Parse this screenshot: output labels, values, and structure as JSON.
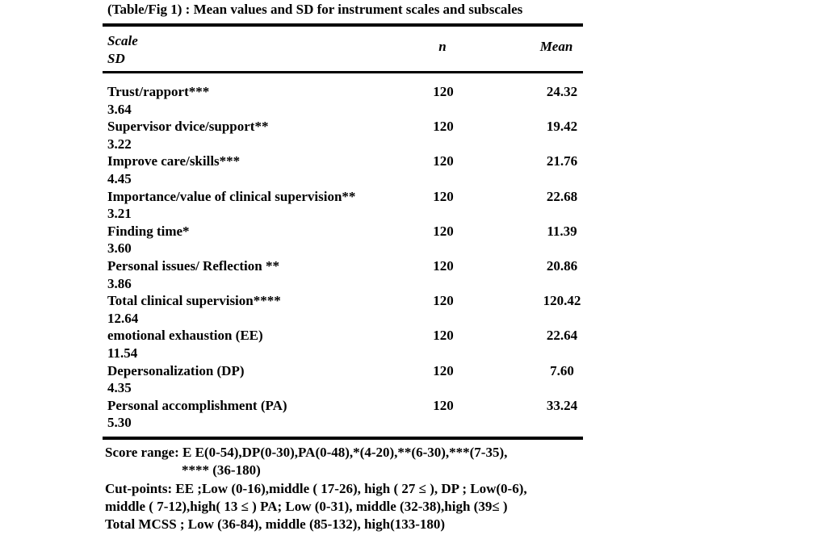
{
  "title": "(Table/Fig 1) : Mean values and SD for instrument scales and subscales",
  "table": {
    "header": {
      "scale": "Scale",
      "sd": "SD",
      "n": "n",
      "mean": "Mean"
    },
    "rows": [
      {
        "scale": "Trust/rapport***",
        "n": "120",
        "mean": "24.32",
        "sd": "3.64"
      },
      {
        "scale": "Supervisor dvice/support**",
        "n": "120",
        "mean": "19.42",
        "sd": "3.22"
      },
      {
        "scale": "Improve care/skills***",
        "n": "120",
        "mean": "21.76",
        "sd": "4.45"
      },
      {
        "scale": "Importance/value of clinical supervision**",
        "n": "120",
        "mean": "22.68",
        "sd": "3.21"
      },
      {
        "scale": "Finding time*",
        "n": "120",
        "mean": "11.39",
        "sd": "3.60"
      },
      {
        "scale": "Personal issues/ Reflection **",
        "n": "120",
        "mean": "20.86",
        "sd": "3.86"
      },
      {
        "scale": "Total clinical supervision****",
        "n": "120",
        "mean": "120.42",
        "sd": "12.64"
      },
      {
        "scale": "emotional exhaustion (EE)",
        "n": "120",
        "mean": "22.64",
        "sd": "11.54"
      },
      {
        "scale": "Depersonalization (DP)",
        "n": "120",
        "mean": "7.60",
        "sd": "4.35"
      },
      {
        "scale": "Personal accomplishment (PA)",
        "n": "120",
        "mean": "33.24",
        "sd": "5.30"
      }
    ]
  },
  "footnotes": {
    "lines": [
      "Score range: E E(0-54),DP(0-30),PA(0-48),*(4-20),**(6-30),***(7-35),",
      "**** (36-180)",
      "Cut-points: EE ;Low (0-16),middle ( 17-26), high ( 27 ≤ ), DP ; Low(0-6),",
      "middle ( 7-12),high( 13 ≤ ) PA; Low (0-31), middle (32-38),high (39≤ )",
      "Total MCSS ; Low (36-84), middle (85-132), high(133-180)"
    ]
  },
  "colors": {
    "text": "#000000",
    "background": "#ffffff",
    "rule": "#000000"
  }
}
